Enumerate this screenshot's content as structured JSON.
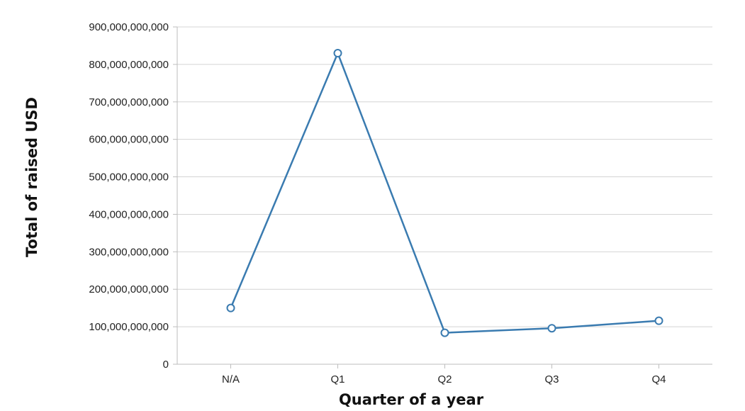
{
  "chart_data": {
    "type": "line",
    "xlabel": "Quarter of a year",
    "ylabel": "Total of raised USD",
    "categories": [
      "N/A",
      "Q1",
      "Q2",
      "Q3",
      "Q4"
    ],
    "series": [
      {
        "values": [
          150000000000,
          830000000000,
          84000000000,
          96000000000,
          116000000000
        ]
      }
    ],
    "ylim": [
      0,
      900000000000
    ],
    "yticks": [
      0,
      100000000000,
      200000000000,
      300000000000,
      400000000000,
      500000000000,
      600000000000,
      700000000000,
      800000000000,
      900000000000
    ],
    "ytick_labels": [
      "0",
      "100,000,000,000",
      "200,000,000,000",
      "300,000,000,000",
      "400,000,000,000",
      "500,000,000,000",
      "600,000,000,000",
      "700,000,000,000",
      "800,000,000,000",
      "900,000,000,000"
    ],
    "grid": true,
    "line_color": "#3a7bb0",
    "marker": "open-circle"
  }
}
